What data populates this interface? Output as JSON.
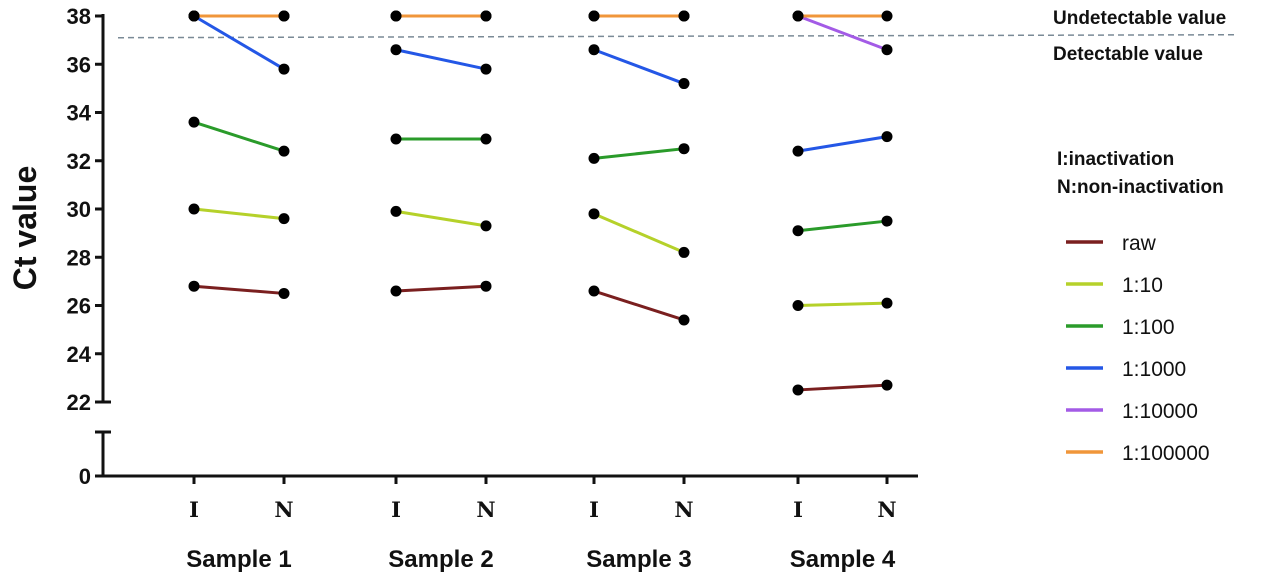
{
  "chart_data": {
    "type": "line",
    "ylabel": "Ct value",
    "y_ticks": [
      "0",
      "22",
      "24",
      "26",
      "28",
      "30",
      "32",
      "34",
      "36",
      "38"
    ],
    "ylim": [
      22,
      38
    ],
    "y_axis_break": "between 0 and 22",
    "categories": [
      "I",
      "N"
    ],
    "groups": [
      "Sample 1",
      "Sample 2",
      "Sample 3",
      "Sample 4"
    ],
    "threshold": {
      "value": 37.1,
      "above_label": "Undetectable value",
      "below_label": "Detectable value"
    },
    "legend_note": [
      "I:inactivation",
      "N:non-inactivation"
    ],
    "series": [
      {
        "name": "raw",
        "color": "#7a1f1f",
        "values": [
          [
            26.8,
            26.5
          ],
          [
            26.6,
            26.8
          ],
          [
            26.6,
            25.4
          ],
          [
            22.5,
            22.7
          ]
        ]
      },
      {
        "name": "1:10",
        "color": "#b5d12a",
        "values": [
          [
            30.0,
            29.6
          ],
          [
            29.9,
            29.3
          ],
          [
            29.8,
            28.2
          ],
          [
            26.0,
            26.1
          ]
        ]
      },
      {
        "name": "1:100",
        "color": "#2a9b2a",
        "values": [
          [
            33.6,
            32.4
          ],
          [
            32.9,
            32.9
          ],
          [
            32.1,
            32.5
          ],
          [
            29.1,
            29.5
          ]
        ]
      },
      {
        "name": "1:1000",
        "color": "#2457e6",
        "values": [
          [
            38.0,
            35.8
          ],
          [
            36.6,
            35.8
          ],
          [
            36.6,
            35.2
          ],
          [
            32.4,
            33.0
          ]
        ]
      },
      {
        "name": "1:10000",
        "color": "#a35be6",
        "values": [
          [
            38.0,
            38.0
          ],
          [
            38.0,
            38.0
          ],
          [
            38.0,
            38.0
          ],
          [
            38.0,
            36.6
          ]
        ]
      },
      {
        "name": "1:100000",
        "color": "#f0963a",
        "values": [
          [
            38.0,
            38.0
          ],
          [
            38.0,
            38.0
          ],
          [
            38.0,
            38.0
          ],
          [
            38.0,
            38.0
          ]
        ]
      }
    ],
    "legend_position": "right",
    "grid": false
  }
}
